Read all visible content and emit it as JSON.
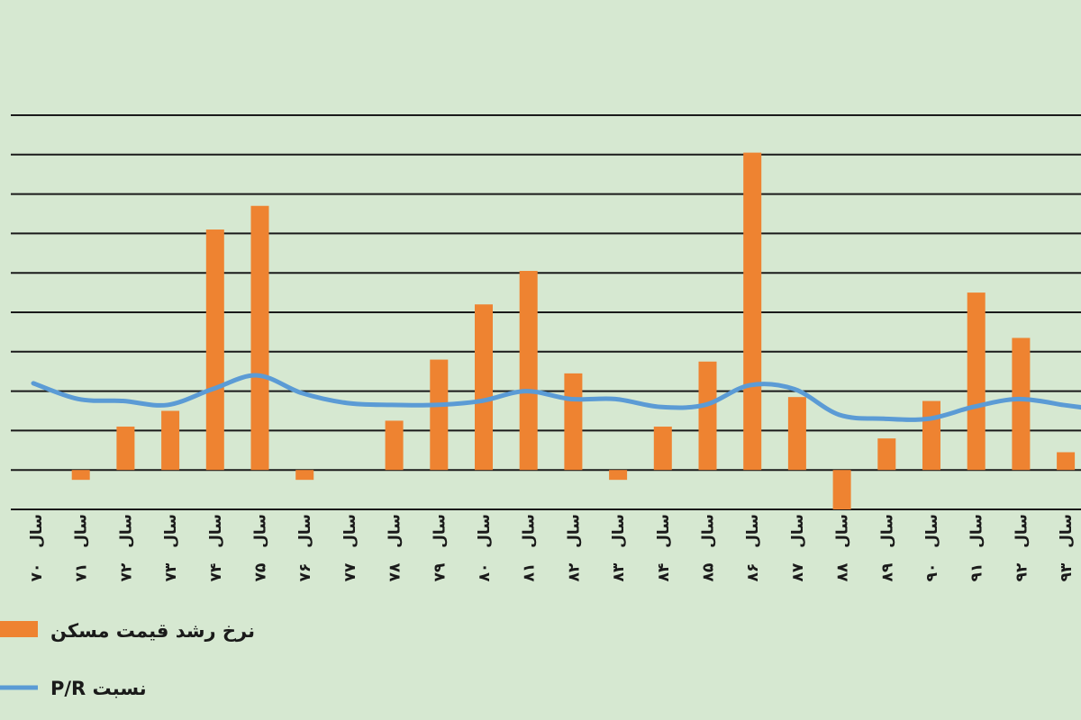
{
  "chart_data": {
    "type": "bar",
    "title": "",
    "xlabel": "",
    "ylabel": "",
    "grid": true,
    "legend_position": "bottom-left",
    "colors": {
      "background": "#d6e8d1",
      "bars": "#ee8331",
      "line": "#5b9bd5",
      "grid": "#1a1a1a",
      "text": "#1a1a1a"
    },
    "categories": [
      {
        "prefix": "سال",
        "year": "۷۰"
      },
      {
        "prefix": "سال",
        "year": "۷۱"
      },
      {
        "prefix": "سال",
        "year": "۷۲"
      },
      {
        "prefix": "سال",
        "year": "۷۳"
      },
      {
        "prefix": "سال",
        "year": "۷۴"
      },
      {
        "prefix": "سال",
        "year": "۷۵"
      },
      {
        "prefix": "سال",
        "year": "۷۶"
      },
      {
        "prefix": "سال",
        "year": "۷۷"
      },
      {
        "prefix": "سال",
        "year": "۷۸"
      },
      {
        "prefix": "سال",
        "year": "۷۹"
      },
      {
        "prefix": "سال",
        "year": "۸۰"
      },
      {
        "prefix": "سال",
        "year": "۸۱"
      },
      {
        "prefix": "سال",
        "year": "۸۲"
      },
      {
        "prefix": "سال",
        "year": "۸۳"
      },
      {
        "prefix": "سال",
        "year": "۸۴"
      },
      {
        "prefix": "سال",
        "year": "۸۵"
      },
      {
        "prefix": "سال",
        "year": "۸۶"
      },
      {
        "prefix": "سال",
        "year": "۸۷"
      },
      {
        "prefix": "سال",
        "year": "۸۸"
      },
      {
        "prefix": "سال",
        "year": "۸۹"
      },
      {
        "prefix": "سال",
        "year": "۹۰"
      },
      {
        "prefix": "سال",
        "year": "۹۱"
      },
      {
        "prefix": "سال",
        "year": "۹۲"
      },
      {
        "prefix": "سال",
        "year": "۹۳"
      }
    ],
    "ylim": [
      -1,
      9
    ],
    "gridlines": 10,
    "series": [
      {
        "name": "نرخ رشد قیمت مسکن",
        "type": "bar",
        "values": [
          0,
          -0.25,
          1.1,
          1.5,
          6.1,
          6.7,
          -0.25,
          0,
          1.25,
          2.8,
          4.2,
          5.05,
          2.45,
          -0.25,
          1.1,
          2.75,
          8.05,
          1.85,
          -1.0,
          0.8,
          1.75,
          4.5,
          3.35,
          0.45
        ]
      },
      {
        "name": "نسبت P/R",
        "type": "line",
        "values": [
          2.2,
          1.8,
          1.75,
          1.65,
          2.05,
          2.4,
          1.95,
          1.7,
          1.65,
          1.65,
          1.75,
          2.0,
          1.8,
          1.8,
          1.6,
          1.65,
          2.15,
          2.05,
          1.4,
          1.3,
          1.3,
          1.6,
          1.8,
          1.65
        ]
      }
    ]
  }
}
